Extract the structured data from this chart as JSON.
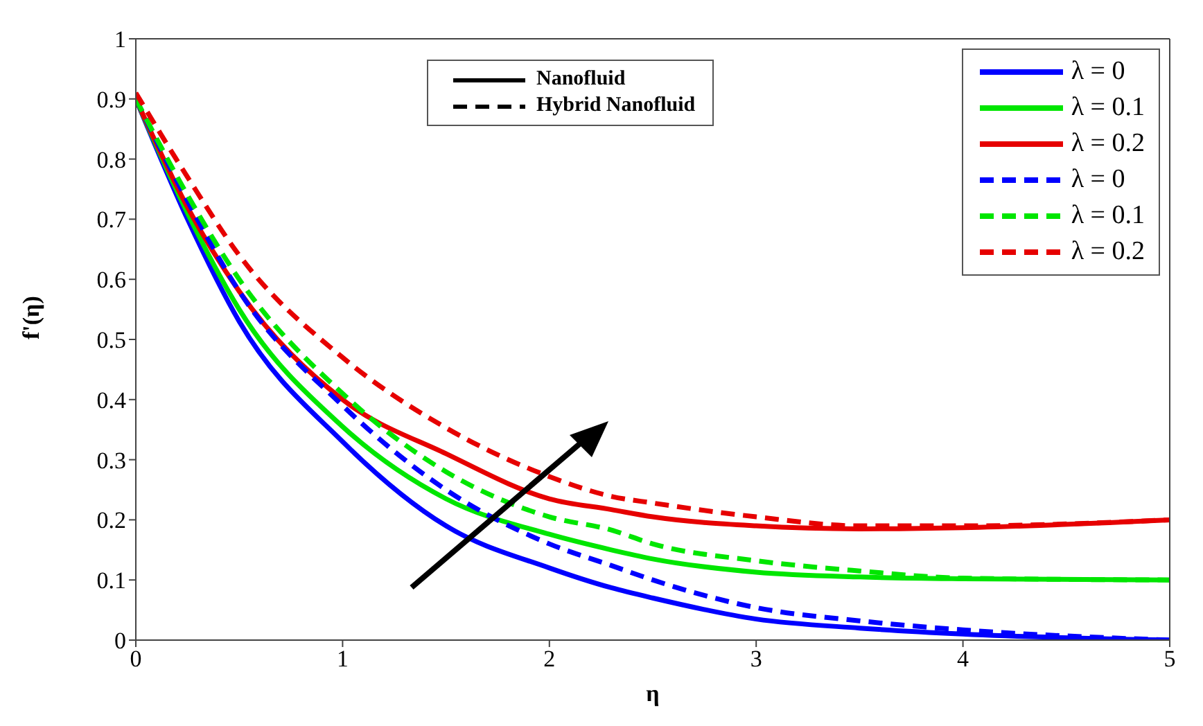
{
  "chart_data": {
    "type": "line",
    "xlabel": "η",
    "ylabel": "f'(η)",
    "x": [
      0,
      0.25,
      0.5,
      1,
      1.5,
      2,
      2.3,
      2.5,
      3,
      3.5,
      4,
      5
    ],
    "xlim": [
      0,
      5
    ],
    "xticks": [
      0,
      1,
      2,
      3,
      4,
      5
    ],
    "ylim": [
      0,
      1
    ],
    "yticks": [
      0,
      0.1,
      0.2,
      0.3,
      0.4,
      0.5,
      0.6,
      0.7,
      0.8,
      0.9,
      1
    ],
    "grid": false,
    "legend": "top right",
    "marker": "none",
    "annotations": [
      "Nanofluid",
      "Hybrid Nanofluid"
    ],
    "series": [
      {
        "name": "λ = 0",
        "color": "#0000ff",
        "line_style": "solid",
        "values": [
          0.9,
          0.7,
          0.53,
          0.33,
          0.19,
          0.12,
          0.087,
          0.07,
          0.035,
          0.02,
          0.01,
          0
        ]
      },
      {
        "name": "λ = 0.1",
        "color": "#00e600",
        "line_style": "solid",
        "values": [
          0.9,
          0.71,
          0.55,
          0.355,
          0.235,
          0.176,
          0.15,
          0.135,
          0.113,
          0.105,
          0.102,
          0.1
        ]
      },
      {
        "name": "λ = 0.2",
        "color": "#e60000",
        "line_style": "solid",
        "values": [
          0.9,
          0.72,
          0.58,
          0.4,
          0.31,
          0.235,
          0.217,
          0.205,
          0.19,
          0.185,
          0.187,
          0.2
        ]
      },
      {
        "name": "λ = 0",
        "color": "#0000ff",
        "line_style": "dashed",
        "values": [
          0.9,
          0.73,
          0.58,
          0.39,
          0.25,
          0.16,
          0.124,
          0.1,
          0.054,
          0.032,
          0.017,
          0
        ]
      },
      {
        "name": "λ = 0.1",
        "color": "#00e600",
        "line_style": "dashed",
        "values": [
          0.9,
          0.74,
          0.6,
          0.41,
          0.28,
          0.205,
          0.183,
          0.16,
          0.132,
          0.115,
          0.103,
          0.1
        ]
      },
      {
        "name": "λ = 0.2",
        "color": "#e60000",
        "line_style": "dashed",
        "values": [
          0.91,
          0.77,
          0.64,
          0.47,
          0.353,
          0.272,
          0.239,
          0.228,
          0.205,
          0.19,
          0.19,
          0.2
        ]
      }
    ]
  }
}
